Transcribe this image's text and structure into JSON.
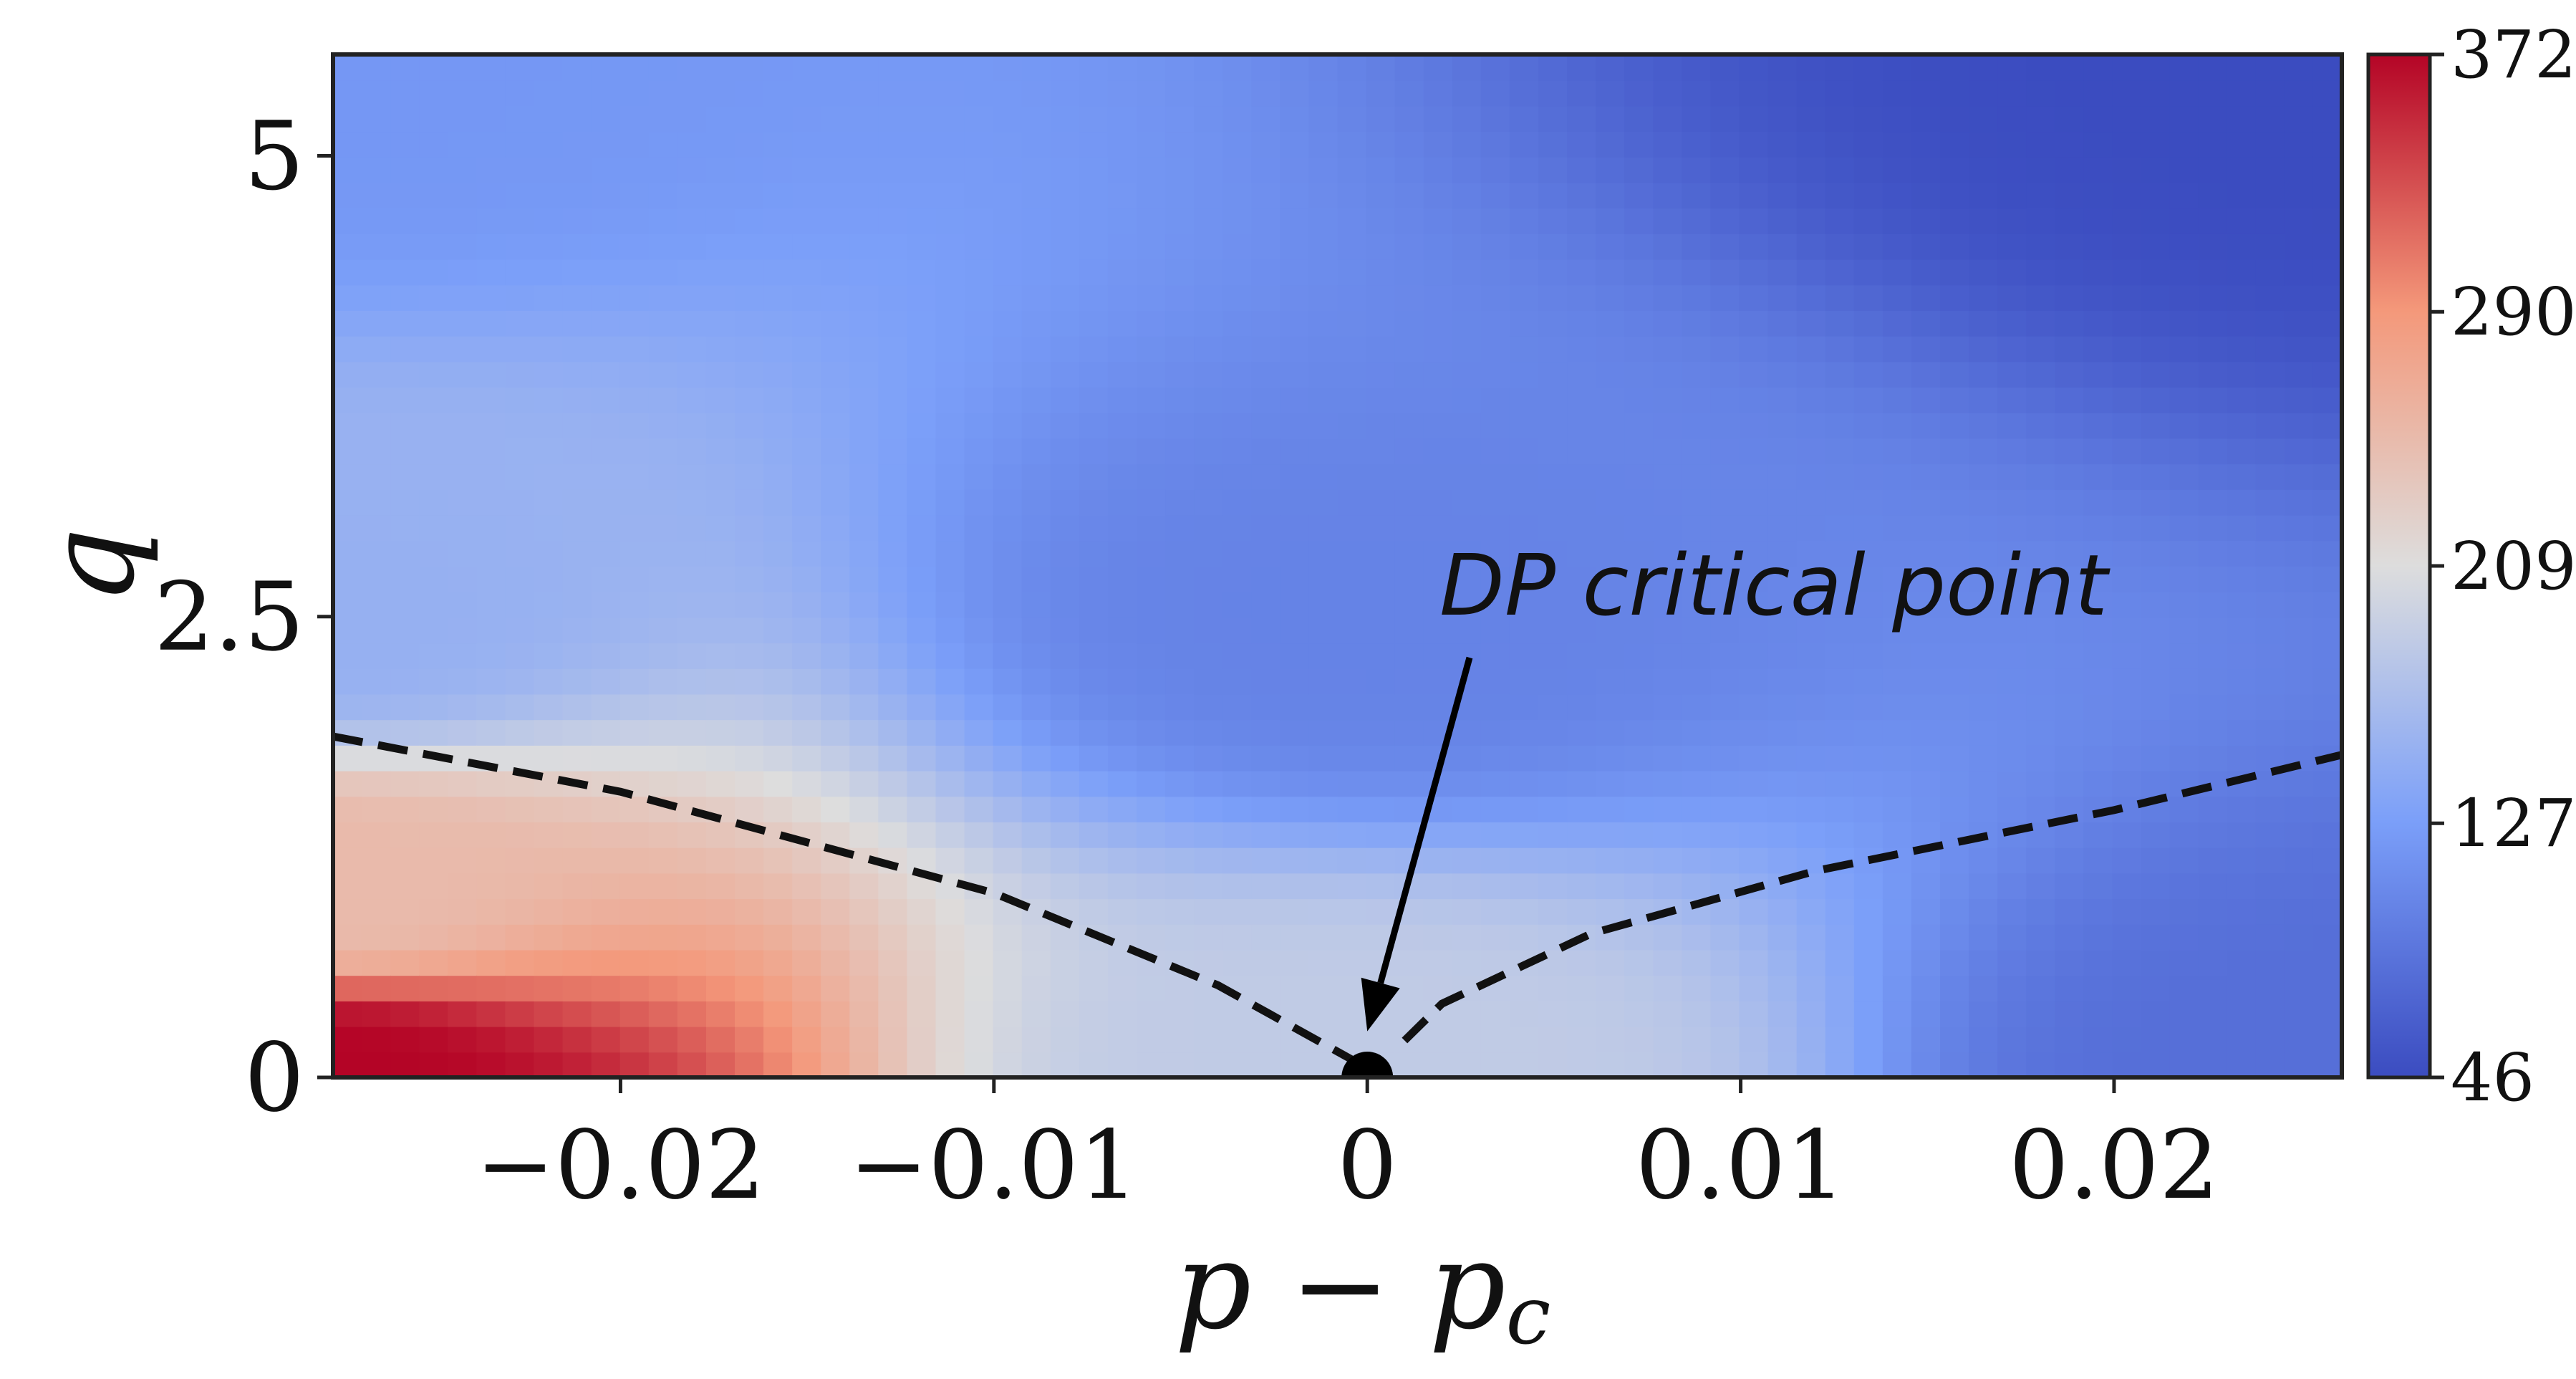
{
  "chart_data": {
    "type": "heatmap",
    "xlabel": "p − p",
    "xlabel_subscript": "c",
    "ylabel": "q",
    "xlim": [
      -0.0277,
      0.0261
    ],
    "ylim": [
      0,
      5.55
    ],
    "xticks": [
      -0.02,
      -0.01,
      0,
      0.01,
      0.02
    ],
    "xtick_labels": [
      "−0.02",
      "−0.01",
      "0",
      "0.01",
      "0.02"
    ],
    "yticks": [
      0,
      2.5,
      5
    ],
    "ytick_labels": [
      "0",
      "2.5",
      "5"
    ],
    "colormap": "coolwarm",
    "colorbar": {
      "min": 46,
      "max": 372,
      "ticks": [
        46,
        127,
        209,
        290,
        372
      ],
      "tick_labels": [
        "46",
        "127",
        "209",
        "290",
        "372"
      ]
    },
    "field_samples": [
      {
        "x": -0.0277,
        "y": 0.0,
        "value": 372
      },
      {
        "x": -0.0277,
        "y": 1.0,
        "value": 250
      },
      {
        "x": -0.0277,
        "y": 2.5,
        "value": 150
      },
      {
        "x": -0.0277,
        "y": 5.55,
        "value": 120
      },
      {
        "x": 0.0,
        "y": 0.0,
        "value": 185
      },
      {
        "x": 0.0,
        "y": 2.5,
        "value": 100
      },
      {
        "x": 0.0261,
        "y": 0.0,
        "value": 80
      },
      {
        "x": 0.0261,
        "y": 5.55,
        "value": 46
      }
    ],
    "series": [
      {
        "style": "dashed",
        "points": [
          {
            "x": -0.0277,
            "y": 1.85
          },
          {
            "x": -0.02,
            "y": 1.55
          },
          {
            "x": -0.01,
            "y": 1.0
          },
          {
            "x": -0.004,
            "y": 0.5
          },
          {
            "x": 0.0,
            "y": 0.05
          }
        ]
      },
      {
        "style": "dashed",
        "points": [
          {
            "x": 0.001,
            "y": 0.2
          },
          {
            "x": 0.002,
            "y": 0.4
          },
          {
            "x": 0.006,
            "y": 0.78
          },
          {
            "x": 0.012,
            "y": 1.12
          },
          {
            "x": 0.02,
            "y": 1.45
          },
          {
            "x": 0.0261,
            "y": 1.75
          }
        ]
      }
    ],
    "critical_point": {
      "x": 0.0,
      "y": 0.0
    },
    "annotation": {
      "text": "DP critical point",
      "points_to": {
        "x": 0.0,
        "y": 0.25
      }
    }
  }
}
